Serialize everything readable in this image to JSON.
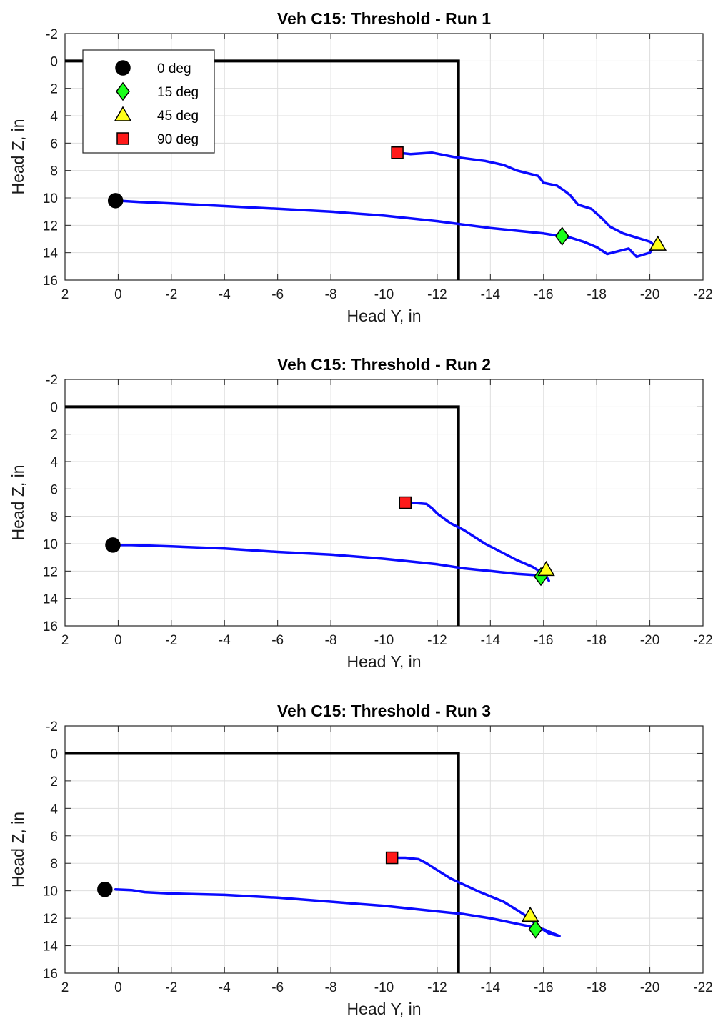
{
  "chart_data": [
    {
      "type": "line",
      "title": "Veh C15: Threshold - Run 1",
      "xlabel": "Head Y, in",
      "ylabel": "Head Z, in",
      "xlim": [
        2,
        -22
      ],
      "ylim": [
        -2,
        16
      ],
      "xticks": [
        "2",
        "0",
        "-2",
        "-4",
        "-6",
        "-8",
        "-10",
        "-12",
        "-14",
        "-16",
        "-18",
        "-20",
        "-22"
      ],
      "yticks": [
        "-2",
        "0",
        "2",
        "4",
        "6",
        "8",
        "10",
        "12",
        "14",
        "16"
      ],
      "grid": true,
      "y_reversed": true,
      "legend": {
        "placement": "top-left",
        "entries": [
          "0 deg",
          "15 deg",
          "45 deg",
          "90 deg"
        ]
      },
      "boundary": [
        [
          2,
          0
        ],
        [
          -12.8,
          0
        ],
        [
          -12.8,
          16
        ]
      ],
      "trajectory": [
        [
          0.1,
          10.2
        ],
        [
          -0.8,
          10.3
        ],
        [
          -2,
          10.4
        ],
        [
          -4,
          10.6
        ],
        [
          -6,
          10.8
        ],
        [
          -8,
          11
        ],
        [
          -10,
          11.3
        ],
        [
          -12,
          11.7
        ],
        [
          -14,
          12.2
        ],
        [
          -16,
          12.6
        ],
        [
          -17,
          12.9
        ],
        [
          -17.5,
          13.2
        ],
        [
          -18,
          13.6
        ],
        [
          -18.4,
          14.1
        ],
        [
          -19.2,
          13.7
        ],
        [
          -19.5,
          14.3
        ],
        [
          -20,
          14
        ],
        [
          -20.2,
          13.5
        ],
        [
          -20,
          13.2
        ],
        [
          -19,
          12.6
        ],
        [
          -18.5,
          12.1
        ],
        [
          -18.2,
          11.5
        ],
        [
          -17.8,
          10.8
        ],
        [
          -17.3,
          10.5
        ],
        [
          -17,
          9.8
        ],
        [
          -16.8,
          9.5
        ],
        [
          -16.5,
          9.1
        ],
        [
          -16,
          8.9
        ],
        [
          -15.8,
          8.4
        ],
        [
          -15.4,
          8.2
        ],
        [
          -15,
          8
        ],
        [
          -14.5,
          7.6
        ],
        [
          -13.8,
          7.3
        ],
        [
          -12.6,
          7
        ],
        [
          -11.8,
          6.7
        ],
        [
          -11,
          6.8
        ],
        [
          -10.5,
          6.7
        ]
      ],
      "markers": [
        {
          "label": "0 deg",
          "x": 0.1,
          "y": 10.2
        },
        {
          "label": "15 deg",
          "x": -16.7,
          "y": 12.8
        },
        {
          "label": "45 deg",
          "x": -20.3,
          "y": 13.4
        },
        {
          "label": "90 deg",
          "x": -10.5,
          "y": 6.7
        }
      ]
    },
    {
      "type": "line",
      "title": "Veh C15: Threshold - Run 2",
      "xlabel": "Head Y, in",
      "ylabel": "Head Z, in",
      "xlim": [
        2,
        -22
      ],
      "ylim": [
        -2,
        16
      ],
      "xticks": [
        "2",
        "0",
        "-2",
        "-4",
        "-6",
        "-8",
        "-10",
        "-12",
        "-14",
        "-16",
        "-18",
        "-20",
        "-22"
      ],
      "yticks": [
        "-2",
        "0",
        "2",
        "4",
        "6",
        "8",
        "10",
        "12",
        "14",
        "16"
      ],
      "grid": true,
      "y_reversed": true,
      "boundary": [
        [
          2,
          0
        ],
        [
          -12.8,
          0
        ],
        [
          -12.8,
          16
        ]
      ],
      "trajectory": [
        [
          0.2,
          10.1
        ],
        [
          -0.5,
          10.1
        ],
        [
          -2,
          10.2
        ],
        [
          -4,
          10.35
        ],
        [
          -6,
          10.6
        ],
        [
          -8,
          10.8
        ],
        [
          -10,
          11.1
        ],
        [
          -12,
          11.5
        ],
        [
          -13,
          11.8
        ],
        [
          -14,
          12
        ],
        [
          -15,
          12.2
        ],
        [
          -15.8,
          12.3
        ],
        [
          -16.1,
          12.4
        ],
        [
          -16.2,
          12.7
        ],
        [
          -16,
          12.2
        ],
        [
          -15.6,
          11.7
        ],
        [
          -15,
          11.2
        ],
        [
          -14.4,
          10.6
        ],
        [
          -13.8,
          10
        ],
        [
          -13,
          9
        ],
        [
          -12.5,
          8.5
        ],
        [
          -12,
          7.8
        ],
        [
          -11.8,
          7.4
        ],
        [
          -11.6,
          7.1
        ],
        [
          -11,
          7
        ],
        [
          -10.8,
          7
        ]
      ],
      "markers": [
        {
          "label": "0 deg",
          "x": 0.2,
          "y": 10.1
        },
        {
          "label": "15 deg",
          "x": -15.9,
          "y": 12.4
        },
        {
          "label": "45 deg",
          "x": -16.1,
          "y": 11.9
        },
        {
          "label": "90 deg",
          "x": -10.8,
          "y": 7
        }
      ]
    },
    {
      "type": "line",
      "title": "Veh C15: Threshold - Run 3",
      "xlabel": "Head Y, in",
      "ylabel": "Head Z, in",
      "xlim": [
        2,
        -22
      ],
      "ylim": [
        -2,
        16
      ],
      "xticks": [
        "2",
        "0",
        "-2",
        "-4",
        "-6",
        "-8",
        "-10",
        "-12",
        "-14",
        "-16",
        "-18",
        "-20",
        "-22"
      ],
      "yticks": [
        "-2",
        "0",
        "2",
        "4",
        "6",
        "8",
        "10",
        "12",
        "14",
        "16"
      ],
      "grid": true,
      "y_reversed": true,
      "boundary": [
        [
          2,
          0
        ],
        [
          -12.8,
          0
        ],
        [
          -12.8,
          16
        ]
      ],
      "trajectory": [
        [
          0.1,
          9.9
        ],
        [
          -0.5,
          9.95
        ],
        [
          -1,
          10.1
        ],
        [
          -2,
          10.2
        ],
        [
          -4,
          10.3
        ],
        [
          -6,
          10.5
        ],
        [
          -8,
          10.8
        ],
        [
          -10,
          11.1
        ],
        [
          -12,
          11.5
        ],
        [
          -13,
          11.7
        ],
        [
          -14,
          12
        ],
        [
          -15,
          12.4
        ],
        [
          -16,
          12.8
        ],
        [
          -16.6,
          13.3
        ],
        [
          -16.2,
          13.1
        ],
        [
          -15.8,
          12.6
        ],
        [
          -15.4,
          11.9
        ],
        [
          -15,
          11.4
        ],
        [
          -14.5,
          10.8
        ],
        [
          -13.5,
          10
        ],
        [
          -12.5,
          9.1
        ],
        [
          -12,
          8.5
        ],
        [
          -11.6,
          8
        ],
        [
          -11.3,
          7.7
        ],
        [
          -10.8,
          7.6
        ],
        [
          -10.3,
          7.6
        ]
      ],
      "markers": [
        {
          "label": "0 deg",
          "x": 0.5,
          "y": 9.9
        },
        {
          "label": "15 deg",
          "x": -15.7,
          "y": 12.8
        },
        {
          "label": "45 deg",
          "x": -15.5,
          "y": 11.8
        },
        {
          "label": "90 deg",
          "x": -10.3,
          "y": 7.6
        }
      ]
    }
  ],
  "colors": {
    "trajectory": "#0a0aff",
    "boundary": "#000000",
    "grid": "#dedede",
    "marker_0deg": "#000000",
    "marker_15deg": "#1aff1a",
    "marker_45deg": "#ffff1a",
    "marker_90deg": "#ff1a1a"
  }
}
